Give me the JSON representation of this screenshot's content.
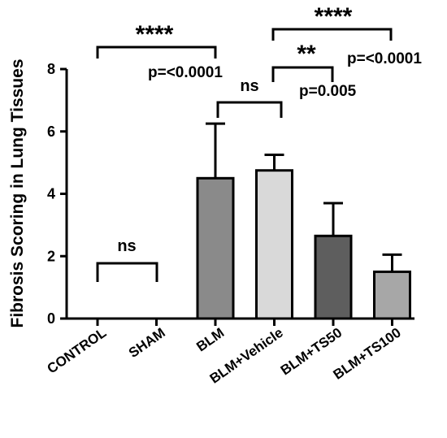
{
  "chart_data": {
    "type": "bar",
    "ylabel": "Fibrosis Scoring in Lung Tissues",
    "xlabel": "",
    "ylim": [
      0,
      8
    ],
    "yticks": [
      "0",
      "2",
      "4",
      "6",
      "8"
    ],
    "categories": [
      "CONTROL",
      "SHAM",
      "BLM",
      "BLM+Vehicle",
      "BLM+TS50",
      "BLM+TS100"
    ],
    "values": [
      0,
      0,
      4.5,
      4.75,
      2.65,
      1.5
    ],
    "errors": [
      0,
      0,
      1.75,
      0.5,
      1.05,
      0.55
    ],
    "bar_colors": [
      "#ffffff",
      "#ffffff",
      "#8a8a8a",
      "#d9d9d9",
      "#5e5e5e",
      "#a7a7a7"
    ],
    "annotations": {
      "control_sham_ns": "ns",
      "control_blm_stars": "****",
      "control_blm_p": "p=<0.0001",
      "blm_vehicle_ns": "ns",
      "vehicle_ts50_stars": "**",
      "vehicle_ts50_p": "p=0.005",
      "vehicle_ts100_stars": "****",
      "vehicle_ts100_p": "p=<0.0001"
    }
  }
}
